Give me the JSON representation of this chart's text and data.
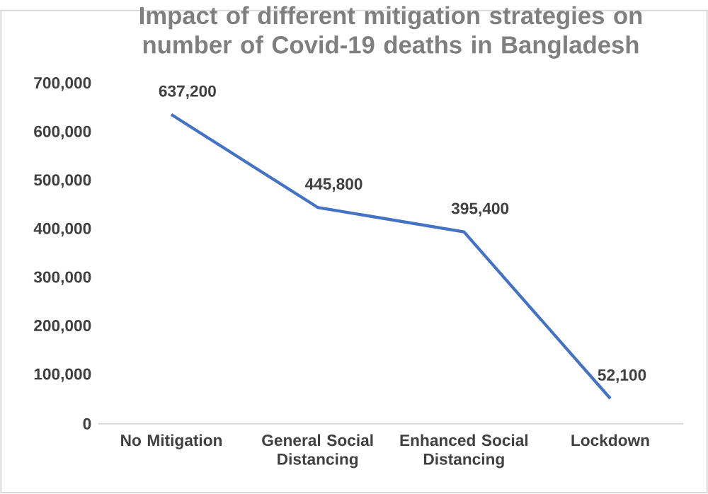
{
  "chart_data": {
    "type": "line",
    "title": "Impact of different mitigation strategies on number of Covid-19 deaths in Bangladesh",
    "categories": [
      "No Mitigation",
      "General Social Distancing",
      "Enhanced Social Distancing",
      "Lockdown"
    ],
    "series": [
      {
        "color": "#4472c4",
        "values": [
          637200,
          445800,
          395400,
          52100
        ],
        "value_labels": [
          "637,200",
          "445,800",
          "395,400",
          "52,100"
        ]
      }
    ],
    "ylim": [
      0,
      700000
    ],
    "yticks": [
      {
        "value": 0,
        "label": "0"
      },
      {
        "value": 100000,
        "label": "100,000"
      },
      {
        "value": 200000,
        "label": "200,000"
      },
      {
        "value": 300000,
        "label": "300,000"
      },
      {
        "value": 400000,
        "label": "400,000"
      },
      {
        "value": 500000,
        "label": "500,000"
      },
      {
        "value": 600000,
        "label": "600,000"
      },
      {
        "value": 700000,
        "label": "700,000"
      }
    ],
    "grid": false,
    "marker": "none",
    "line_style": "solid"
  }
}
